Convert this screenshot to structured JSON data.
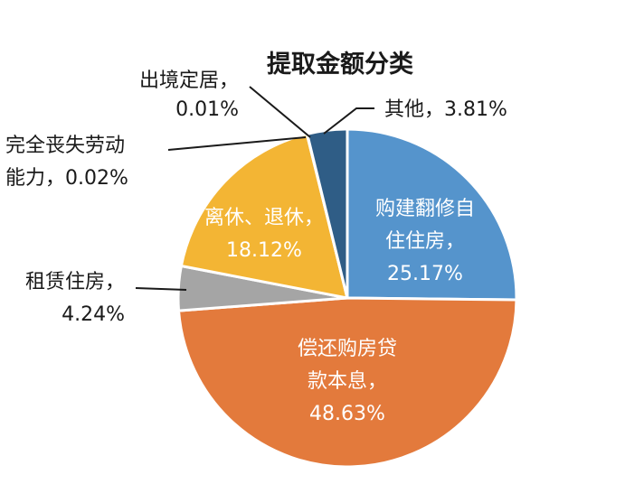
{
  "chart_data": {
    "type": "pie",
    "title": "提取金额分类",
    "start_angle_deg": 0,
    "direction": "clockwise",
    "slices": [
      {
        "name": "购建翻修自住住房",
        "value": 25.17,
        "color": "#5594cc",
        "label_lines": [
          "购建翻修自",
          "住住房，",
          "25.17%"
        ],
        "label_style": "inside"
      },
      {
        "name": "偿还购房贷款本息",
        "value": 48.63,
        "color": "#e37a3c",
        "label_lines": [
          "偿还购房贷",
          "款本息，",
          "48.63%"
        ],
        "label_style": "inside"
      },
      {
        "name": "租赁住房",
        "value": 4.24,
        "color": "#a5a5a5",
        "label_lines": [
          "租赁住房，",
          "4.24%"
        ],
        "label_style": "outside"
      },
      {
        "name": "离休、退休",
        "value": 18.12,
        "color": "#f3b534",
        "label_lines": [
          "离休、退休，",
          "18.12%"
        ],
        "label_style": "inside"
      },
      {
        "name": "完全丧失劳动能力",
        "value": 0.02,
        "color": "#f3b534",
        "label_lines": [
          "完全丧失劳动",
          "能力，0.02%"
        ],
        "label_style": "outside"
      },
      {
        "name": "出境定居",
        "value": 0.01,
        "color": "#f3b534",
        "label_lines": [
          "出境定居，",
          "0.01%"
        ],
        "label_style": "outside"
      },
      {
        "name": "其他",
        "value": 3.81,
        "color": "#2f5d86",
        "label_lines": [
          "其他，3.81%"
        ],
        "label_style": "outside"
      }
    ]
  }
}
